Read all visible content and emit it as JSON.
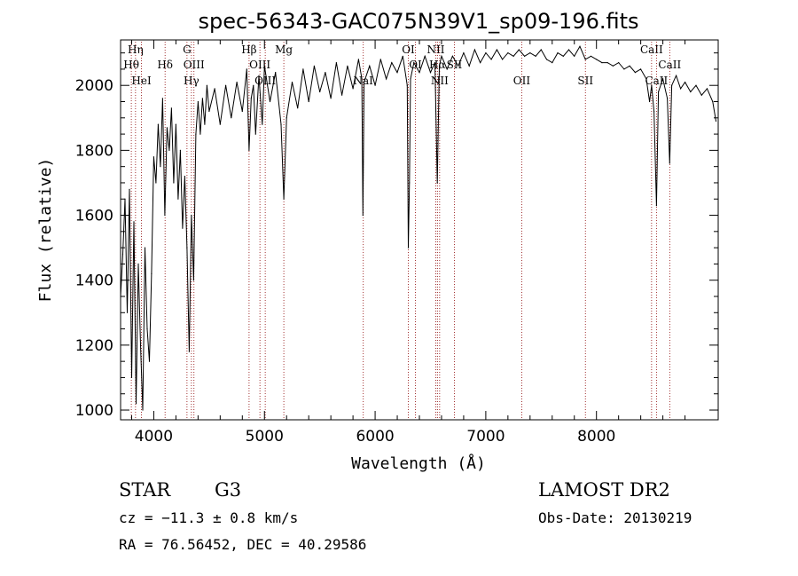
{
  "chart_data": {
    "type": "line",
    "title": "spec-56343-GAC075N39V1_sp09-196.fits",
    "xlabel": "Wavelength (Å)",
    "ylabel": "Flux (relative)",
    "xlim": [
      3700,
      9100
    ],
    "ylim": [
      970,
      2140
    ],
    "xticks": [
      4000,
      5000,
      6000,
      7000,
      8000
    ],
    "yticks": [
      1000,
      1200,
      1400,
      1600,
      1800,
      2000
    ],
    "series": [
      {
        "points": [
          [
            3700,
            1350
          ],
          [
            3720,
            1480
          ],
          [
            3740,
            1650
          ],
          [
            3760,
            1300
          ],
          [
            3780,
            1680
          ],
          [
            3800,
            1100
          ],
          [
            3820,
            1580
          ],
          [
            3840,
            1020
          ],
          [
            3860,
            1450
          ],
          [
            3880,
            1200
          ],
          [
            3900,
            1000
          ],
          [
            3920,
            1500
          ],
          [
            3940,
            1250
          ],
          [
            3960,
            1150
          ],
          [
            3980,
            1420
          ],
          [
            4000,
            1780
          ],
          [
            4020,
            1700
          ],
          [
            4040,
            1880
          ],
          [
            4060,
            1750
          ],
          [
            4080,
            1960
          ],
          [
            4100,
            1600
          ],
          [
            4120,
            1870
          ],
          [
            4140,
            1800
          ],
          [
            4160,
            1930
          ],
          [
            4180,
            1700
          ],
          [
            4200,
            1880
          ],
          [
            4220,
            1650
          ],
          [
            4240,
            1800
          ],
          [
            4260,
            1560
          ],
          [
            4280,
            1720
          ],
          [
            4300,
            1500
          ],
          [
            4320,
            1180
          ],
          [
            4340,
            1600
          ],
          [
            4360,
            1400
          ],
          [
            4380,
            1850
          ],
          [
            4400,
            1950
          ],
          [
            4420,
            1850
          ],
          [
            4440,
            1960
          ],
          [
            4460,
            1880
          ],
          [
            4480,
            2000
          ],
          [
            4500,
            1920
          ],
          [
            4550,
            1990
          ],
          [
            4600,
            1880
          ],
          [
            4650,
            2000
          ],
          [
            4700,
            1900
          ],
          [
            4750,
            2010
          ],
          [
            4800,
            1920
          ],
          [
            4840,
            2050
          ],
          [
            4861,
            1800
          ],
          [
            4880,
            1960
          ],
          [
            4900,
            2000
          ],
          [
            4920,
            1850
          ],
          [
            4950,
            2030
          ],
          [
            4980,
            1880
          ],
          [
            5000,
            2060
          ],
          [
            5050,
            1950
          ],
          [
            5100,
            2040
          ],
          [
            5150,
            1880
          ],
          [
            5175,
            1650
          ],
          [
            5200,
            1900
          ],
          [
            5250,
            2010
          ],
          [
            5300,
            1930
          ],
          [
            5350,
            2050
          ],
          [
            5400,
            1950
          ],
          [
            5450,
            2060
          ],
          [
            5500,
            1980
          ],
          [
            5550,
            2040
          ],
          [
            5600,
            1960
          ],
          [
            5650,
            2070
          ],
          [
            5700,
            1970
          ],
          [
            5750,
            2060
          ],
          [
            5800,
            1990
          ],
          [
            5850,
            2080
          ],
          [
            5880,
            2020
          ],
          [
            5890,
            1600
          ],
          [
            5900,
            2010
          ],
          [
            5950,
            2060
          ],
          [
            6000,
            2000
          ],
          [
            6050,
            2080
          ],
          [
            6100,
            2020
          ],
          [
            6150,
            2070
          ],
          [
            6200,
            2040
          ],
          [
            6250,
            2090
          ],
          [
            6290,
            2000
          ],
          [
            6300,
            1500
          ],
          [
            6310,
            1700
          ],
          [
            6320,
            2020
          ],
          [
            6350,
            2070
          ],
          [
            6400,
            2040
          ],
          [
            6450,
            2090
          ],
          [
            6500,
            2040
          ],
          [
            6540,
            2070
          ],
          [
            6562,
            1700
          ],
          [
            6580,
            2060
          ],
          [
            6600,
            2090
          ],
          [
            6650,
            2050
          ],
          [
            6700,
            2090
          ],
          [
            6750,
            2060
          ],
          [
            6800,
            2100
          ],
          [
            6850,
            2060
          ],
          [
            6900,
            2110
          ],
          [
            6950,
            2070
          ],
          [
            7000,
            2100
          ],
          [
            7050,
            2080
          ],
          [
            7100,
            2110
          ],
          [
            7150,
            2080
          ],
          [
            7200,
            2100
          ],
          [
            7250,
            2090
          ],
          [
            7300,
            2110
          ],
          [
            7350,
            2090
          ],
          [
            7400,
            2100
          ],
          [
            7450,
            2090
          ],
          [
            7500,
            2110
          ],
          [
            7550,
            2080
          ],
          [
            7600,
            2070
          ],
          [
            7650,
            2100
          ],
          [
            7700,
            2090
          ],
          [
            7750,
            2110
          ],
          [
            7800,
            2090
          ],
          [
            7850,
            2120
          ],
          [
            7900,
            2080
          ],
          [
            7950,
            2090
          ],
          [
            8000,
            2080
          ],
          [
            8050,
            2070
          ],
          [
            8100,
            2070
          ],
          [
            8150,
            2060
          ],
          [
            8200,
            2070
          ],
          [
            8250,
            2050
          ],
          [
            8300,
            2060
          ],
          [
            8350,
            2040
          ],
          [
            8400,
            2050
          ],
          [
            8450,
            2020
          ],
          [
            8480,
            1950
          ],
          [
            8498,
            2000
          ],
          [
            8520,
            1920
          ],
          [
            8542,
            1630
          ],
          [
            8560,
            1980
          ],
          [
            8600,
            2020
          ],
          [
            8640,
            1960
          ],
          [
            8662,
            1760
          ],
          [
            8680,
            2000
          ],
          [
            8720,
            2030
          ],
          [
            8760,
            1990
          ],
          [
            8800,
            2010
          ],
          [
            8850,
            1980
          ],
          [
            8900,
            2000
          ],
          [
            8950,
            1970
          ],
          [
            9000,
            1990
          ],
          [
            9050,
            1950
          ],
          [
            9080,
            1890
          ]
        ]
      }
    ],
    "lines": [
      {
        "label": "Hη",
        "wl": 3835,
        "row": 0
      },
      {
        "label": "Hθ",
        "wl": 3797,
        "row": 1
      },
      {
        "label": "HeI",
        "wl": 3889,
        "row": 2
      },
      {
        "label": "Hδ",
        "wl": 4102,
        "row": 1
      },
      {
        "label": "G",
        "wl": 4300,
        "row": 0
      },
      {
        "label": "OIII",
        "wl": 4363,
        "row": 1
      },
      {
        "label": "Hγ",
        "wl": 4340,
        "row": 2
      },
      {
        "label": "Hβ",
        "wl": 4861,
        "row": 0
      },
      {
        "label": "OIII",
        "wl": 4959,
        "row": 1
      },
      {
        "label": "OIII",
        "wl": 5007,
        "row": 2
      },
      {
        "label": "Mg",
        "wl": 5175,
        "row": 0
      },
      {
        "label": "NaI",
        "wl": 5893,
        "row": 2
      },
      {
        "label": "OI",
        "wl": 6300,
        "row": 0
      },
      {
        "label": "OI",
        "wl": 6364,
        "row": 1
      },
      {
        "label": "NII",
        "wl": 6548,
        "row": 0
      },
      {
        "label": "NII",
        "wl": 6583,
        "row": 2
      },
      {
        "label": "Hα",
        "wl": 6563,
        "row": 1
      },
      {
        "label": "SII",
        "wl": 6716,
        "row": 1
      },
      {
        "label": "OII",
        "wl": 7325,
        "row": 2
      },
      {
        "label": "SII",
        "wl": 7900,
        "row": 2
      },
      {
        "label": "CaII",
        "wl": 8498,
        "row": 0
      },
      {
        "label": "CaII",
        "wl": 8542,
        "row": 2
      },
      {
        "label": "CaII",
        "wl": 8662,
        "row": 1
      }
    ]
  },
  "info": {
    "class": "STAR",
    "subclass": "G3",
    "survey": "LAMOST DR2",
    "cz": "cz = −11.3 ± 0.8 km/s",
    "obsdate": "Obs-Date: 20130219",
    "radec": "RA =  76.56452, DEC =  40.29586"
  }
}
